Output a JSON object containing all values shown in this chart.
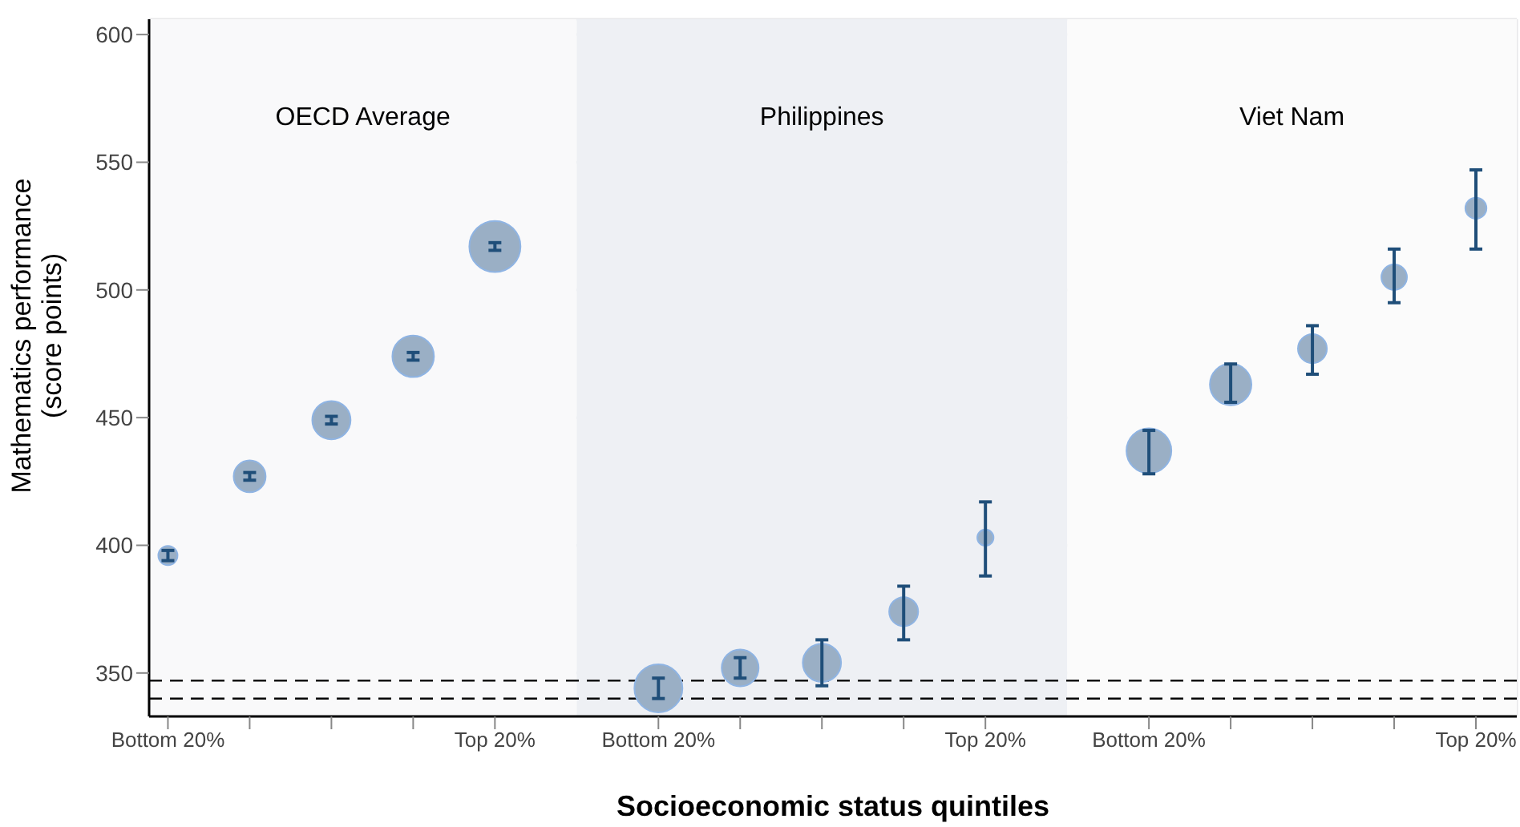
{
  "chart_data": {
    "type": "bubble",
    "xlabel": "Socioeconomic status quintiles",
    "ylabel": "Mathematics performance (score points)",
    "categories": [
      "Bottom 20%",
      null,
      null,
      null,
      "Top 20%",
      "Bottom 20%",
      null,
      null,
      null,
      "Top 20%",
      "Bottom 20%",
      null,
      null,
      null,
      "Top 20%"
    ],
    "annotations": [
      "OECD Average",
      "Philippines",
      "Viet Nam"
    ],
    "ylim": [
      333,
      606
    ],
    "yticks": [
      350,
      400,
      450,
      500,
      550,
      600
    ],
    "grid": true,
    "series": [
      {
        "color": "#9aafc5",
        "values": [
          396,
          427,
          449,
          474,
          517,
          null,
          null,
          null,
          null,
          null,
          null,
          null,
          null,
          null,
          null
        ],
        "sizes": [
          0.14,
          0.39,
          0.56,
          0.66,
          1,
          null,
          null,
          null,
          null,
          null,
          null,
          null,
          null,
          null,
          null
        ],
        "errors": [
          2,
          1.5,
          1.5,
          1.5,
          1.5,
          null,
          null,
          null,
          null,
          null,
          null,
          null,
          null,
          null,
          null
        ]
      },
      {
        "color": "#9aafc5",
        "values": [
          null,
          null,
          null,
          null,
          null,
          344,
          352,
          354,
          374,
          403,
          null,
          null,
          null,
          null,
          null
        ],
        "sizes": [
          null,
          null,
          null,
          null,
          null,
          0.88,
          0.52,
          0.56,
          0.32,
          0.1,
          null,
          null,
          null,
          null,
          null
        ],
        "errors": [
          null,
          null,
          null,
          null,
          null,
          [
            340,
            348
          ],
          [
            348,
            356
          ],
          [
            345,
            363
          ],
          [
            363,
            384
          ],
          [
            388,
            417
          ],
          null,
          null,
          null,
          null,
          null
        ]
      },
      {
        "color": "#9aafc5",
        "values": [
          null,
          null,
          null,
          null,
          null,
          null,
          null,
          null,
          null,
          null,
          437,
          463,
          477,
          505,
          532
        ],
        "sizes": [
          null,
          null,
          null,
          null,
          null,
          null,
          null,
          null,
          null,
          null,
          0.77,
          0.66,
          0.32,
          0.25,
          0.17
        ],
        "errors": [
          null,
          null,
          null,
          null,
          null,
          null,
          null,
          null,
          null,
          null,
          [
            428,
            445
          ],
          [
            456,
            471
          ],
          [
            467,
            486
          ],
          [
            495,
            516
          ],
          [
            516,
            547
          ]
        ]
      }
    ],
    "ref_lines": [
      {
        "axis": "y",
        "value": 347,
        "color": "#000000",
        "line_style": "dashed"
      },
      {
        "axis": "y",
        "value": 340,
        "color": "#000000",
        "line_style": "dashed"
      }
    ]
  }
}
